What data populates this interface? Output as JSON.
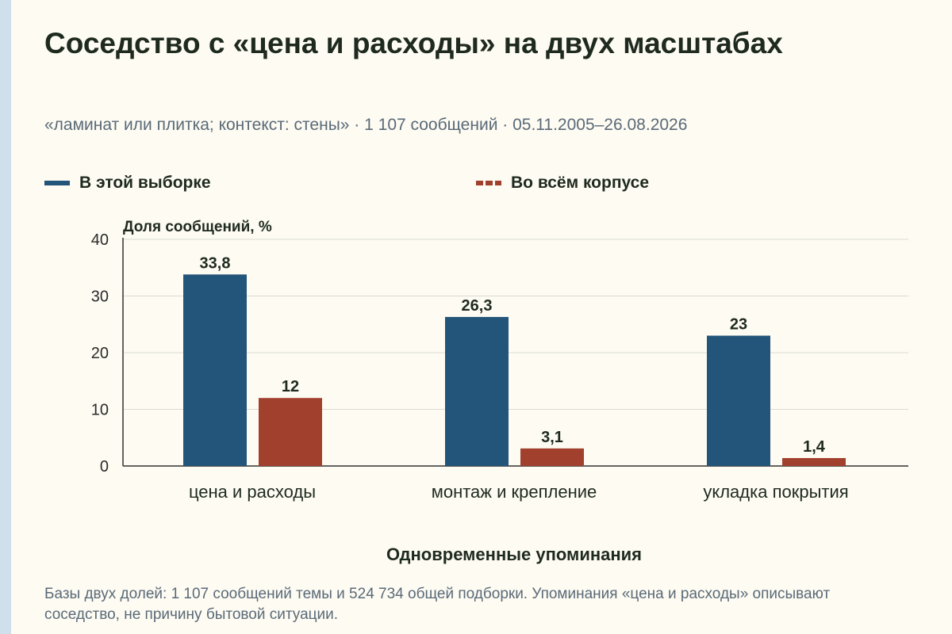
{
  "title": "Соседство с «цена и расходы» на двух масштабах",
  "subtitle": "«ламинат или плитка; контекст: стены» · 1 107 сообщений · 05.11.2005–26.08.2026",
  "note": "Базы двух долей: 1 107 сообщений темы и 524 734 общей подборки. Упоминания «цена и расходы» описывают соседство, не причину бытовой ситуации.",
  "chart_data": {
    "type": "bar",
    "xlabel": "Одновременные упоминания",
    "ylabel": "Доля сообщений, %",
    "ylim": [
      0,
      40
    ],
    "yticks": [
      0,
      10,
      20,
      30,
      40
    ],
    "grid": true,
    "legend_position": "top",
    "categories": [
      "цена и расходы",
      "монтаж и крепление",
      "укладка покрытия"
    ],
    "series": [
      {
        "name": "В этой выборке",
        "color": "#235479",
        "values": [
          33.8,
          26.3,
          23
        ]
      },
      {
        "name": "Во всём корпусе",
        "color": "#a2402e",
        "values": [
          12,
          3.1,
          1.4
        ]
      }
    ]
  }
}
